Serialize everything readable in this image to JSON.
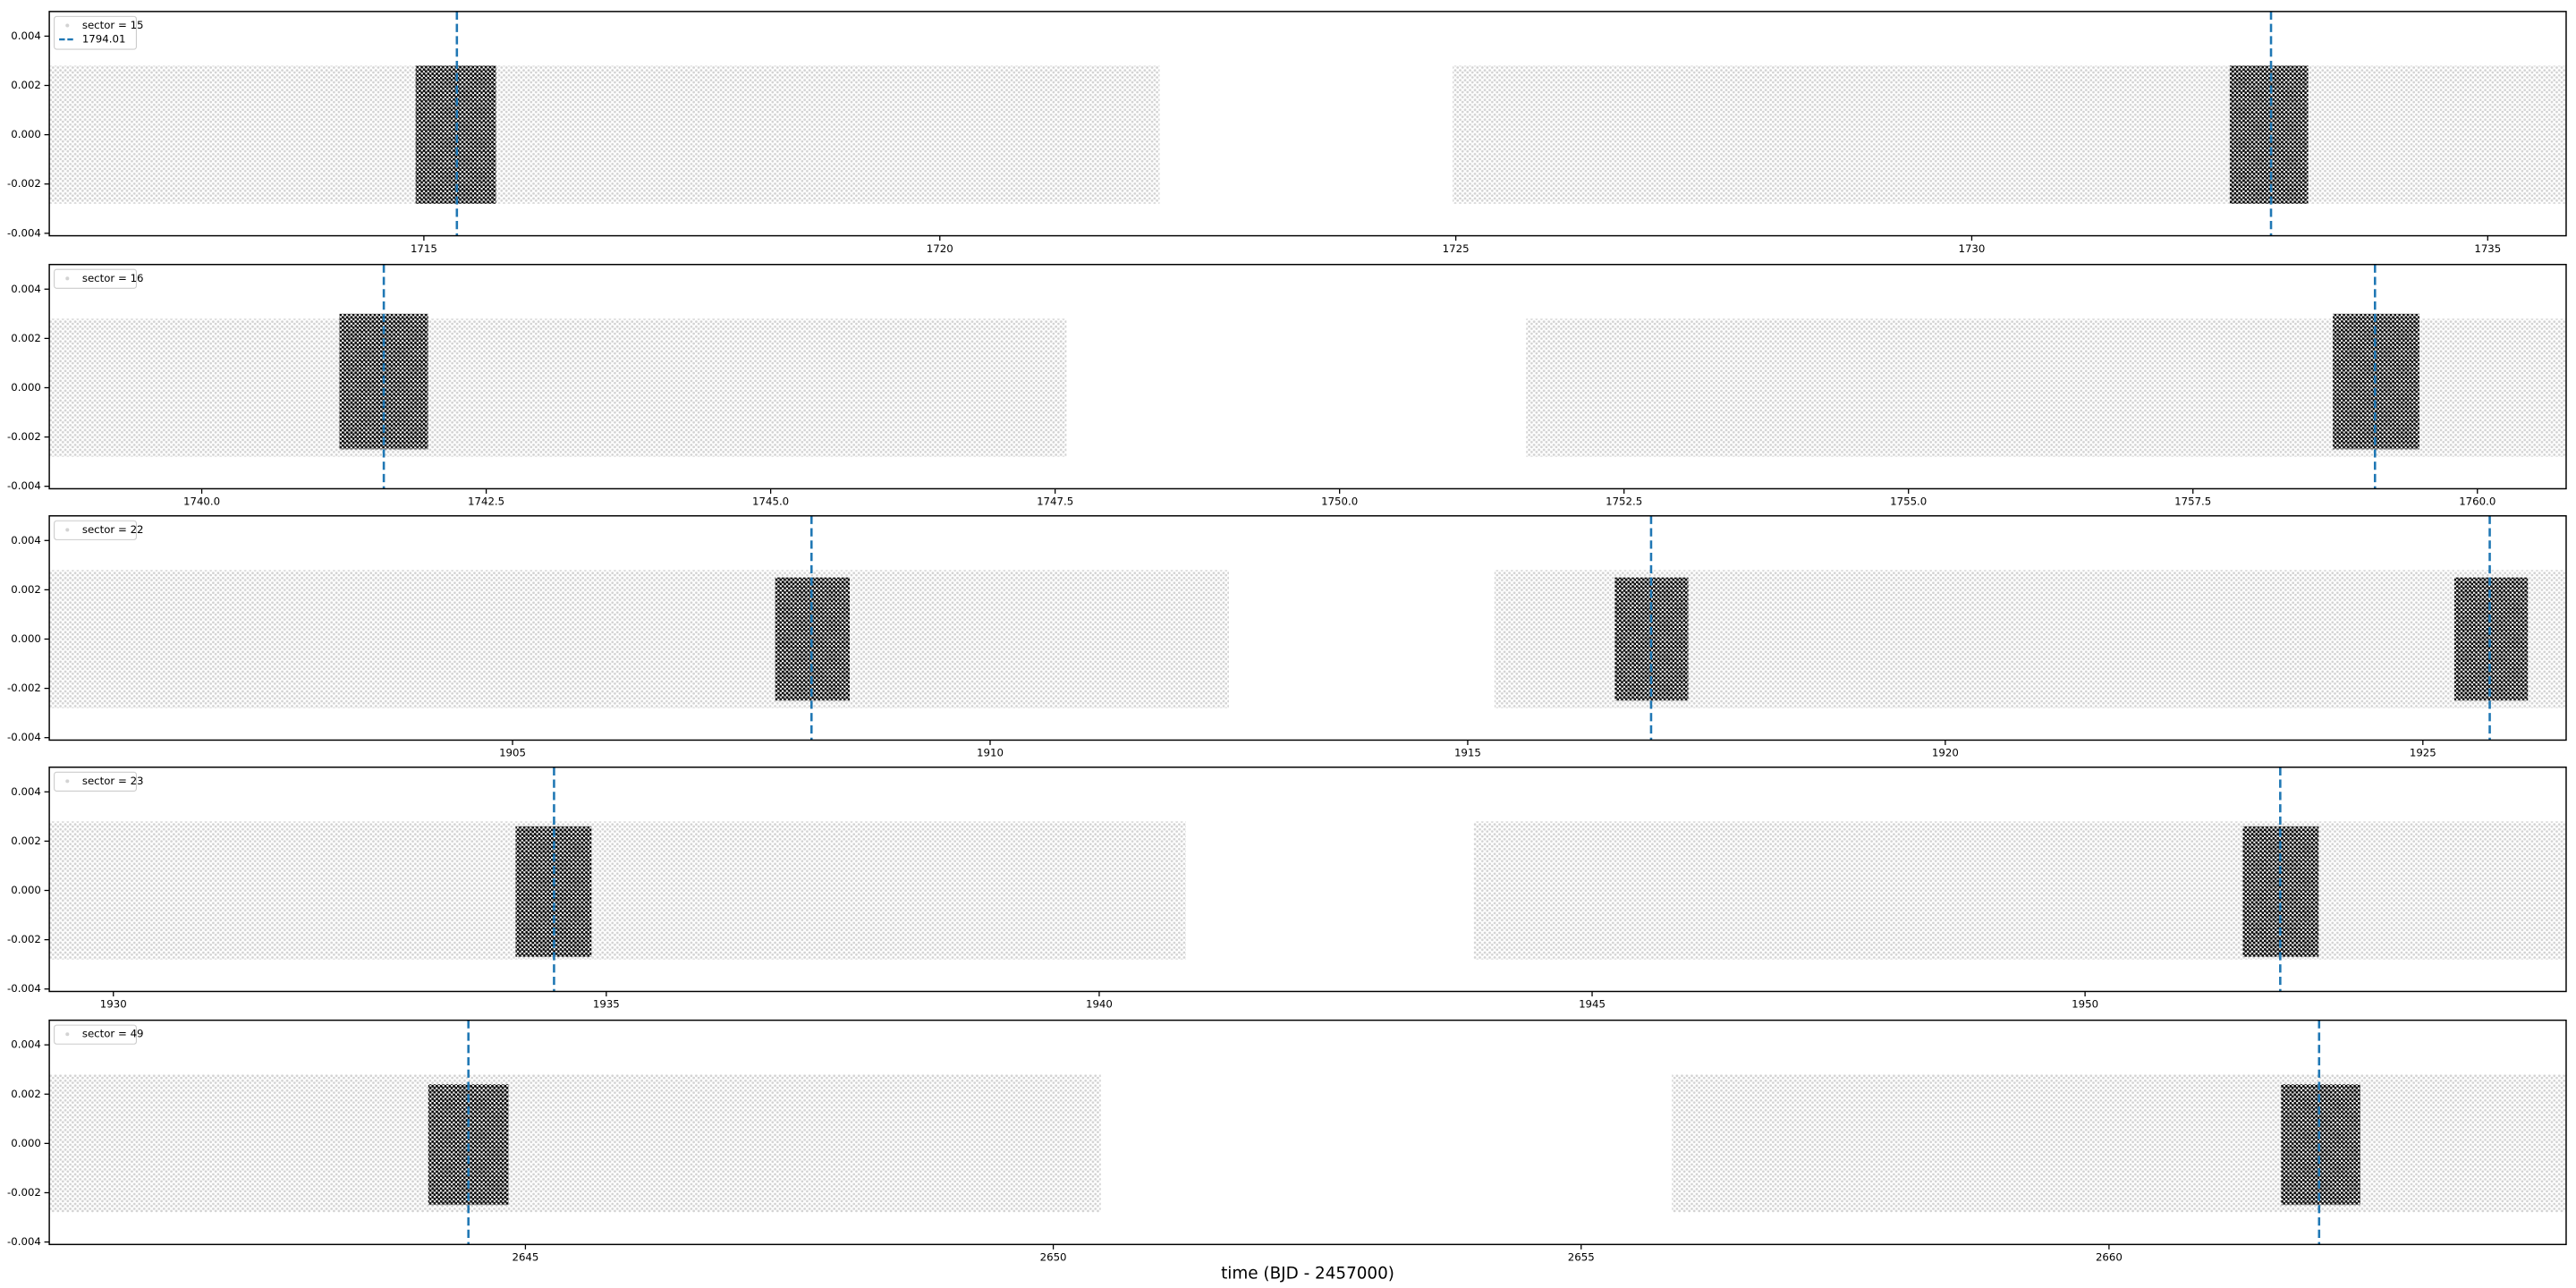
{
  "chart_data": [
    {
      "type": "scatter",
      "xlim": [
        1711.37,
        1735.76
      ],
      "xticks": [
        1715,
        1720,
        1725,
        1730,
        1735
      ],
      "ylim": [
        -0.0041,
        0.005
      ],
      "yticks": [
        -0.004,
        -0.002,
        {
          "value": 0,
          "label": "0.000"
        },
        0.002,
        0.004
      ],
      "series": [
        {
          "name": "sector = 15",
          "color": "#d3d3d3",
          "x_ranges": [
            [
              1711.37,
              1722.13
            ],
            [
              1724.97,
              1735.76
            ]
          ],
          "y_range": [
            -0.0028,
            0.0028
          ]
        },
        {
          "color": "#000000",
          "x_ranges": [
            [
              1714.92,
              1715.7
            ],
            [
              1732.5,
              1733.26
            ]
          ],
          "y_range": [
            -0.0028,
            0.0028
          ]
        }
      ],
      "vlines": {
        "name": "1794.01",
        "color": "#1f77b4",
        "x": [
          1715.32,
          1732.9
        ]
      },
      "legend": "upper left"
    },
    {
      "type": "scatter",
      "xlim": [
        1738.66,
        1760.78
      ],
      "xticks": [
        {
          "value": 1740,
          "label": "1740.0"
        },
        1742.5,
        {
          "value": 1745,
          "label": "1745.0"
        },
        1747.5,
        {
          "value": 1750,
          "label": "1750.0"
        },
        1752.5,
        {
          "value": 1755,
          "label": "1755.0"
        },
        1757.5,
        {
          "value": 1760,
          "label": "1760.0"
        }
      ],
      "ylim": [
        -0.0041,
        0.005
      ],
      "yticks": [
        -0.004,
        -0.002,
        {
          "value": 0,
          "label": "0.000"
        },
        0.002,
        0.004
      ],
      "series": [
        {
          "name": "sector = 16",
          "color": "#d3d3d3",
          "x_ranges": [
            [
              1738.66,
              1747.6
            ],
            [
              1751.64,
              1760.78
            ]
          ],
          "y_range": [
            -0.0028,
            0.0028
          ]
        },
        {
          "color": "#000000",
          "x_ranges": [
            [
              1741.21,
              1741.99
            ],
            [
              1758.73,
              1759.49
            ]
          ],
          "y_range": [
            -0.0025,
            0.003
          ]
        }
      ],
      "vlines": {
        "color": "#1f77b4",
        "x": [
          1741.6,
          1759.1
        ]
      },
      "legend": "upper left"
    },
    {
      "type": "scatter",
      "xlim": [
        1900.15,
        1926.5
      ],
      "xticks": [
        1905,
        1910,
        1915,
        1920,
        1925
      ],
      "ylim": [
        -0.0041,
        0.005
      ],
      "yticks": [
        -0.004,
        -0.002,
        {
          "value": 0,
          "label": "0.000"
        },
        0.002,
        0.004
      ],
      "series": [
        {
          "name": "sector = 22",
          "color": "#d3d3d3",
          "x_ranges": [
            [
              1900.15,
              1912.5
            ],
            [
              1915.28,
              1926.5
            ]
          ],
          "y_range": [
            -0.0028,
            0.0028
          ]
        },
        {
          "color": "#000000",
          "x_ranges": [
            [
              1907.75,
              1908.53
            ],
            [
              1916.54,
              1917.31
            ],
            [
              1925.33,
              1926.1
            ]
          ],
          "y_range": [
            -0.0025,
            0.0025
          ]
        }
      ],
      "vlines": {
        "color": "#1f77b4",
        "x": [
          1908.13,
          1916.92,
          1925.7
        ]
      },
      "legend": "upper left"
    },
    {
      "type": "scatter",
      "xlim": [
        1929.35,
        1954.88
      ],
      "xticks": [
        1930,
        1935,
        1940,
        1945,
        1950
      ],
      "ylim": [
        -0.0041,
        0.005
      ],
      "yticks": [
        -0.004,
        -0.002,
        {
          "value": 0,
          "label": "0.000"
        },
        0.002,
        0.004
      ],
      "series": [
        {
          "name": "sector = 23",
          "color": "#d3d3d3",
          "x_ranges": [
            [
              1929.35,
              1940.88
            ],
            [
              1943.8,
              1954.88
            ]
          ],
          "y_range": [
            -0.0028,
            0.0028
          ]
        },
        {
          "color": "#000000",
          "x_ranges": [
            [
              1934.08,
              1934.85
            ],
            [
              1951.6,
              1952.37
            ]
          ],
          "y_range": [
            -0.0027,
            0.0026
          ]
        }
      ],
      "vlines": {
        "color": "#1f77b4",
        "x": [
          1934.47,
          1951.98
        ]
      },
      "legend": "upper left"
    },
    {
      "type": "scatter",
      "xlim": [
        2640.49,
        2664.33
      ],
      "xticks": [
        2645,
        2650,
        2655,
        2660
      ],
      "ylim": [
        -0.0041,
        0.005
      ],
      "yticks": [
        -0.004,
        -0.002,
        {
          "value": 0,
          "label": "0.000"
        },
        0.002,
        0.004
      ],
      "series": [
        {
          "name": "sector = 49",
          "color": "#d3d3d3",
          "x_ranges": [
            [
              2640.49,
              2650.45
            ],
            [
              2655.86,
              2664.33
            ]
          ],
          "y_range": [
            -0.0028,
            0.0028
          ]
        },
        {
          "color": "#000000",
          "x_ranges": [
            [
              2644.08,
              2644.84
            ],
            [
              2661.63,
              2662.38
            ]
          ],
          "y_range": [
            -0.0025,
            0.0024
          ]
        }
      ],
      "vlines": {
        "color": "#1f77b4",
        "x": [
          2644.46,
          2661.99
        ]
      },
      "legend": "upper left",
      "xlabel": "time (BJD - 2457000)"
    }
  ]
}
